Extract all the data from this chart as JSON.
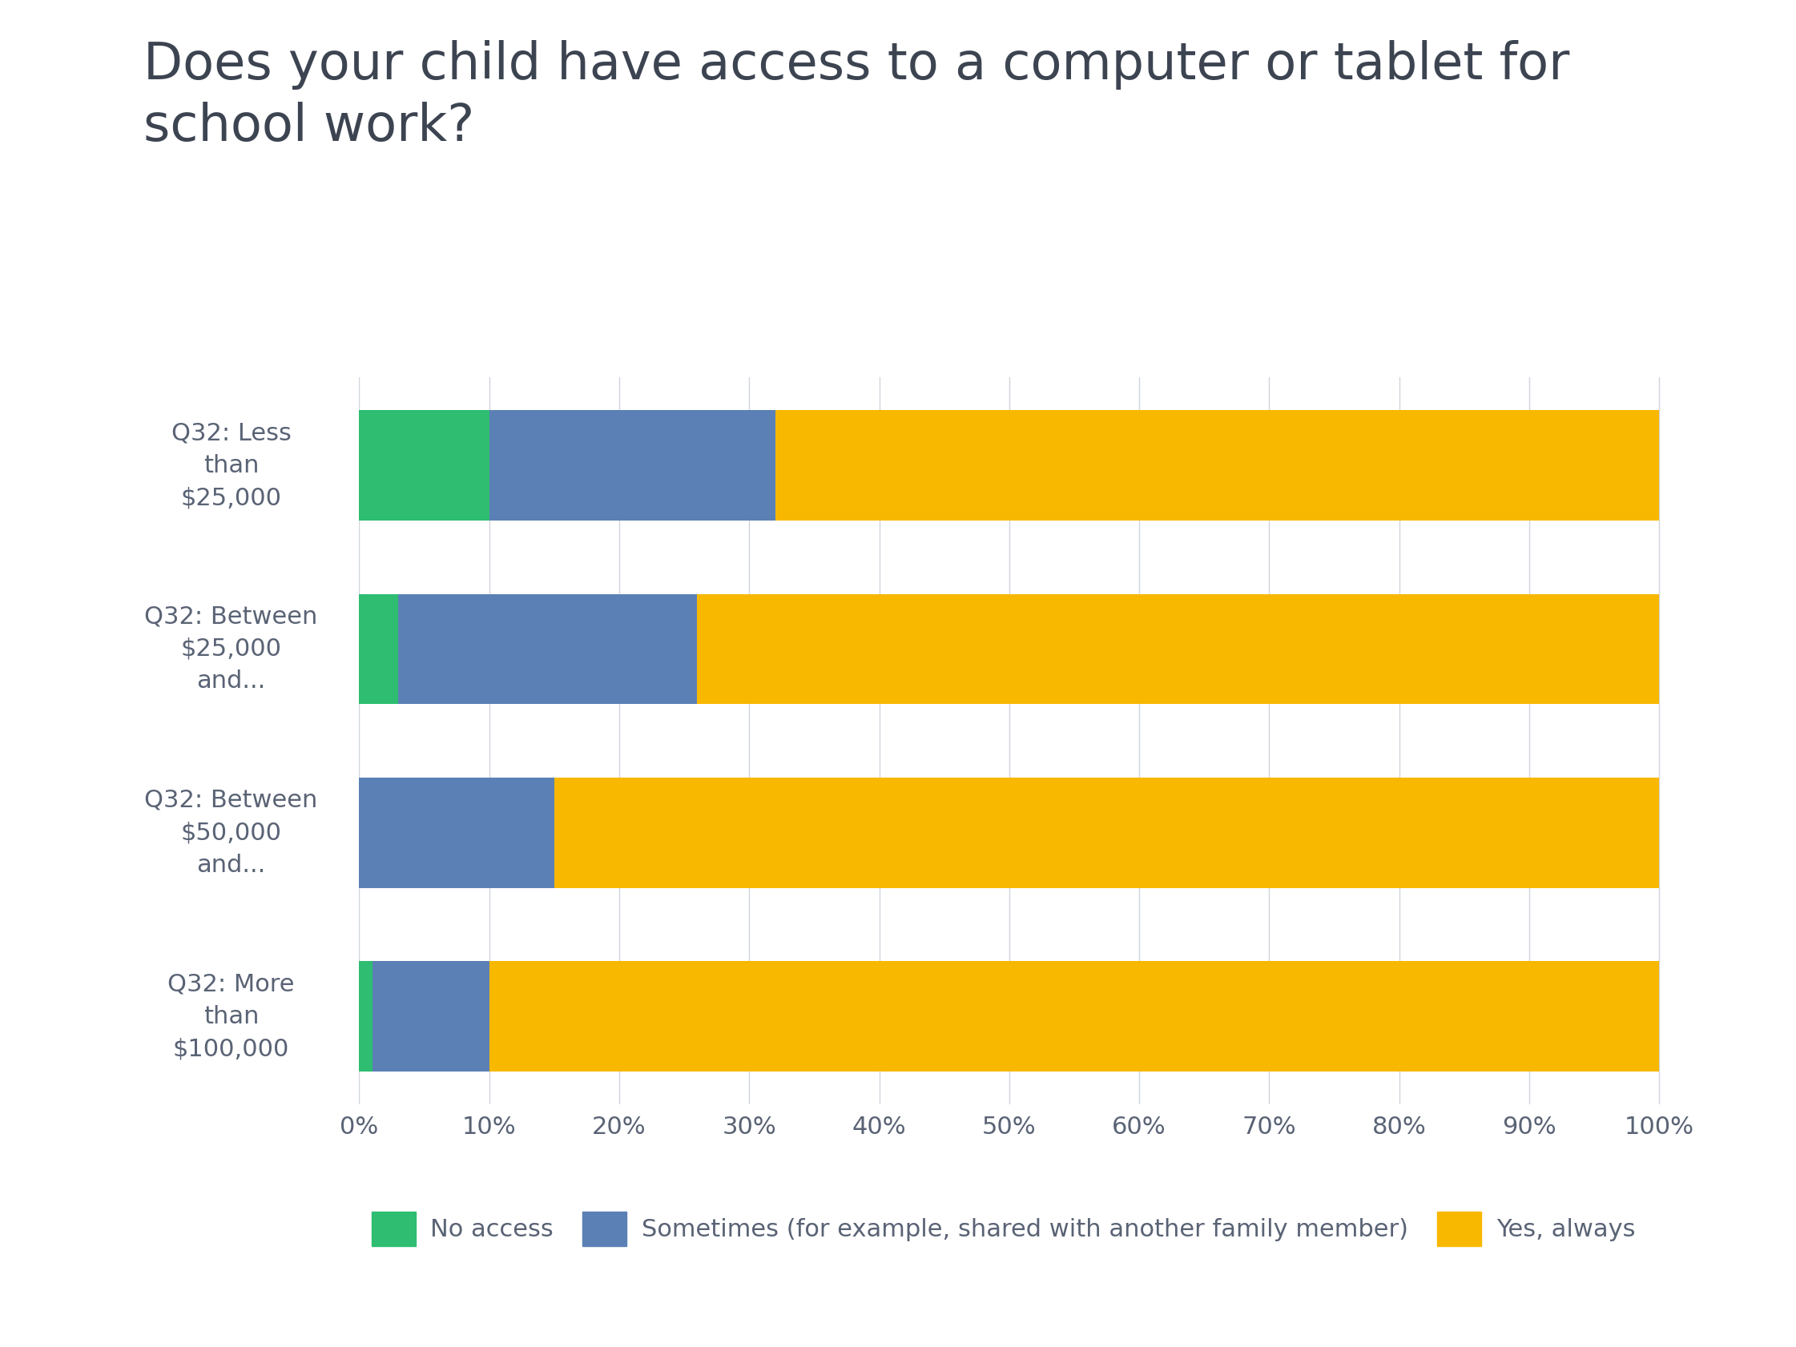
{
  "title": "Does your child have access to a computer or tablet for\nschool work?",
  "categories": [
    "Q32: Less\nthan\n$25,000",
    "Q32: Between\n$25,000\nand...",
    "Q32: Between\n$50,000\nand...",
    "Q32: More\nthan\n$100,000"
  ],
  "series": {
    "No access": [
      10,
      3,
      0,
      1
    ],
    "Sometimes (for example, shared with another family member)": [
      22,
      23,
      15,
      9
    ],
    "Yes, always": [
      68,
      74,
      85,
      90
    ]
  },
  "colors": {
    "No access": "#2ebd71",
    "Sometimes (for example, shared with another family member)": "#5b80b5",
    "Yes, always": "#f8b800"
  },
  "background_color": "#ffffff",
  "title_color": "#3d4451",
  "tick_label_color": "#5a6375",
  "grid_color": "#d0d5dc",
  "title_fontsize": 46,
  "tick_fontsize": 22,
  "legend_fontsize": 22,
  "ylabel_fontsize": 22,
  "xticks": [
    0,
    10,
    20,
    30,
    40,
    50,
    60,
    70,
    80,
    90,
    100
  ],
  "xtick_labels": [
    "0%",
    "10%",
    "20%",
    "30%",
    "40%",
    "50%",
    "60%",
    "70%",
    "80%",
    "90%",
    "100%"
  ]
}
